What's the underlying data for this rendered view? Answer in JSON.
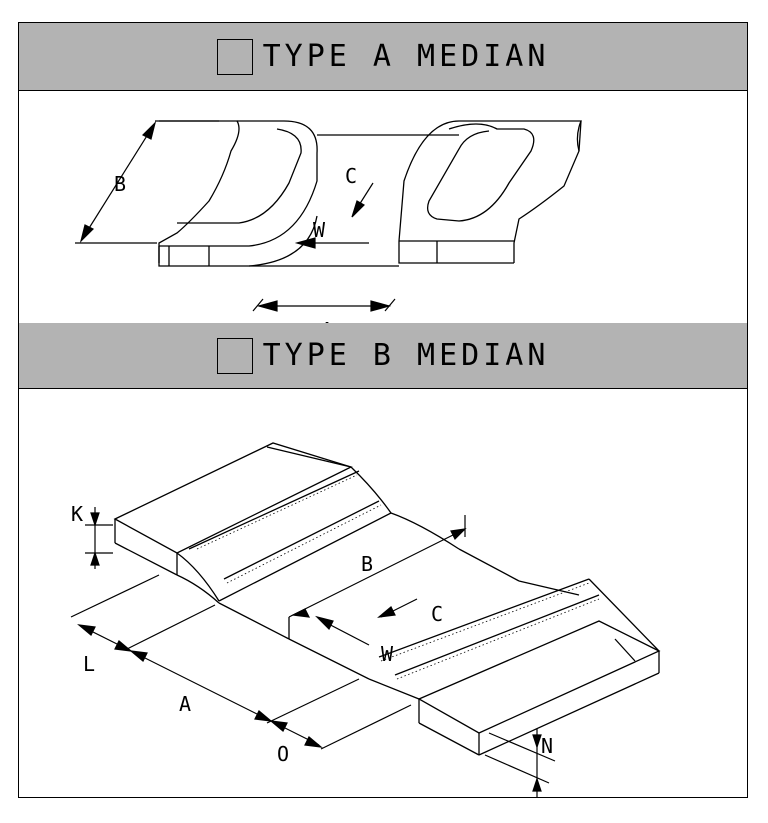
{
  "panel_a": {
    "title": "TYPE A MEDIAN",
    "labels": {
      "b": "B",
      "c": "C",
      "w": "W",
      "a": "A"
    }
  },
  "panel_b": {
    "title": "TYPE B MEDIAN",
    "labels": {
      "k": "K",
      "b": "B",
      "c": "C",
      "w": "W",
      "l": "L",
      "a": "A",
      "o": "O",
      "n": "N"
    }
  }
}
